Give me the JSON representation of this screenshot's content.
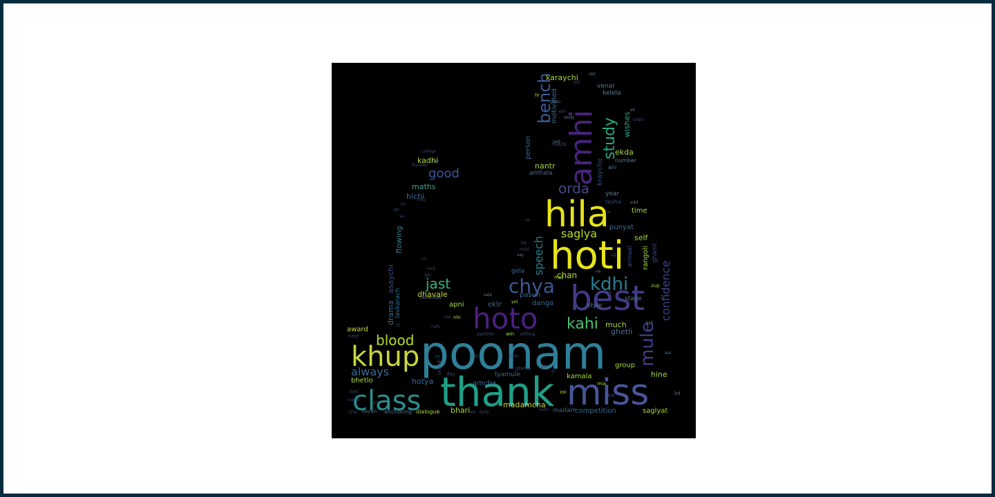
{
  "words": [
    {
      "text": "poonam",
      "color": "#2f7f98"
    },
    {
      "text": "thank",
      "color": "#1f9f88"
    },
    {
      "text": "miss",
      "color": "#46569a"
    },
    {
      "text": "class",
      "color": "#2a8e8d"
    },
    {
      "text": "khup",
      "color": "#c8d63c"
    },
    {
      "text": "hoti",
      "color": "#e7e419"
    },
    {
      "text": "hila",
      "color": "#e7e419"
    },
    {
      "text": "best",
      "color": "#413b86"
    },
    {
      "text": "hoto",
      "color": "#4b1f80"
    },
    {
      "text": "amhi",
      "color": "#47247b"
    },
    {
      "text": "chya",
      "color": "#3b5a96"
    },
    {
      "text": "kdhi",
      "color": "#2a7e91"
    },
    {
      "text": "kahi",
      "color": "#48c06f"
    },
    {
      "text": "mule",
      "color": "#413f86"
    },
    {
      "text": "blood",
      "color": "#b5dd2b"
    },
    {
      "text": "jast",
      "color": "#34b57a"
    },
    {
      "text": "good",
      "color": "#3a569a"
    },
    {
      "text": "bench",
      "color": "#3a5a9a"
    },
    {
      "text": "study",
      "color": "#27aa82"
    },
    {
      "text": "orda",
      "color": "#444885"
    },
    {
      "text": "saglya",
      "color": "#b4dd2b"
    },
    {
      "text": "speech",
      "color": "#2a7f8e"
    },
    {
      "text": "confidence",
      "color": "#3e4388"
    },
    {
      "text": "always",
      "color": "#3a6b94"
    },
    {
      "text": "chan",
      "color": "#b4dd2b"
    },
    {
      "text": "dhavale",
      "color": "#c8d63c"
    },
    {
      "text": "maths",
      "color": "#4d9f91"
    },
    {
      "text": "hichi",
      "color": "#3a6b94"
    },
    {
      "text": "kadhi",
      "color": "#a8d83c"
    },
    {
      "text": "nantr",
      "color": "#a8d83c"
    },
    {
      "text": "amhala",
      "color": "#4d6d8f"
    },
    {
      "text": "person",
      "color": "#3a6b94"
    },
    {
      "text": "wishes",
      "color": "#35a08a"
    },
    {
      "text": "ekda",
      "color": "#a8d83c"
    },
    {
      "text": "motivated",
      "color": "#3a6b94"
    },
    {
      "text": "karaychi",
      "color": "#a8d83c"
    },
    {
      "text": "venar",
      "color": "#5a7a93"
    },
    {
      "text": "kelela",
      "color": "#5a7a93"
    },
    {
      "text": "flowing",
      "color": "#2f8090"
    },
    {
      "text": "drama",
      "color": "#3a6b94"
    },
    {
      "text": "asaychi",
      "color": "#3d4a86"
    },
    {
      "text": "lavkarach",
      "color": "#2f7090"
    },
    {
      "text": "award",
      "color": "#c8d63c"
    },
    {
      "text": "next",
      "color": "#3a4a70"
    },
    {
      "text": "bhetlo",
      "color": "#a8d83c"
    },
    {
      "text": "hotya",
      "color": "#3a6b94"
    },
    {
      "text": "amcha",
      "color": "#3a6b94"
    },
    {
      "text": "tyamule",
      "color": "#3a6b94"
    },
    {
      "text": "kamala",
      "color": "#a8d83c"
    },
    {
      "text": "madamcha",
      "color": "#c8d63c"
    },
    {
      "text": "bhari",
      "color": "#a8d83c"
    },
    {
      "text": "madam",
      "color": "#3a6b94"
    },
    {
      "text": "competition",
      "color": "#3a6b94"
    },
    {
      "text": "saglyat",
      "color": "#a8d83c"
    },
    {
      "text": "hine",
      "color": "#a8d83c"
    },
    {
      "text": "group",
      "color": "#a8d83c"
    },
    {
      "text": "ghetli",
      "color": "#4d6d8f"
    },
    {
      "text": "much",
      "color": "#a8d83c"
    },
    {
      "text": "stage",
      "color": "#5a7a93"
    },
    {
      "text": "style",
      "color": "#5a7a93"
    },
    {
      "text": "apni",
      "color": "#a8d83c"
    },
    {
      "text": "ektr",
      "color": "#3a6b94"
    },
    {
      "text": "danga",
      "color": "#3a6b94"
    },
    {
      "text": "pasun",
      "color": "#3a6b94"
    },
    {
      "text": "gela",
      "color": "#3a6b94"
    },
    {
      "text": "punyat",
      "color": "#3a6b94"
    },
    {
      "text": "self",
      "color": "#a8d83c"
    },
    {
      "text": "time",
      "color": "#a8d83c"
    },
    {
      "text": "year",
      "color": "#5a7a93"
    },
    {
      "text": "rangoli",
      "color": "#a8d83c"
    },
    {
      "text": "annual",
      "color": "#3a4a80"
    },
    {
      "text": "anchoring",
      "color": "#5a7a93"
    },
    {
      "text": "dialogue",
      "color": "#a8d83c"
    },
    {
      "text": "kayan",
      "color": "#5a7a93"
    },
    {
      "text": "cha",
      "color": "#3a4a70"
    },
    {
      "text": "sir",
      "color": "#3a4a70"
    },
    {
      "text": "tula",
      "color": "#3a4a70"
    },
    {
      "text": "kraycho",
      "color": "#2f5080"
    },
    {
      "text": "ani",
      "color": "#5a7a93"
    },
    {
      "text": "number",
      "color": "#5a7a93"
    },
    {
      "text": "maza",
      "color": "#3a4a70"
    },
    {
      "text": "ghanit",
      "color": "#3a4a80"
    },
    {
      "text": "tevha",
      "color": "#3a4a80"
    },
    {
      "text": "win",
      "color": "#a8d83c"
    },
    {
      "text": "partner",
      "color": "#3a4a70"
    },
    {
      "text": "selling",
      "color": "#3a4a70"
    },
    {
      "text": "tr",
      "color": "#3a4a70"
    },
    {
      "text": "chi",
      "color": "#3a4a70"
    },
    {
      "text": "day",
      "color": "#3a4a70"
    },
    {
      "text": "ghetla",
      "color": "#3a4a70"
    },
    {
      "text": "kam",
      "color": "#3a4a70"
    },
    {
      "text": "zai",
      "color": "#a8d83c"
    },
    {
      "text": "mia",
      "color": "#a8d83c"
    },
    {
      "text": "nhi",
      "color": "#a8d83c"
    },
    {
      "text": "usa",
      "color": "#3a4a70"
    },
    {
      "text": "mst",
      "color": "#a8d83c"
    },
    {
      "text": "fod",
      "color": "#3a4a70"
    },
    {
      "text": "kd",
      "color": "#5a7a93"
    },
    {
      "text": "zup",
      "color": "#a8d83c"
    },
    {
      "text": "1st",
      "color": "#5a7a93"
    },
    {
      "text": "aur",
      "color": "#5a7a93"
    },
    {
      "text": "remember",
      "color": "#5a7a93"
    },
    {
      "text": "zale",
      "color": "#5a7a93"
    },
    {
      "text": "yet",
      "color": "#a8d83c"
    },
    {
      "text": "nick",
      "color": "#3a4a70"
    },
    {
      "text": "9th",
      "color": "#3a4a70"
    },
    {
      "text": "ch",
      "color": "#3a4a70"
    },
    {
      "text": "mod",
      "color": "#3a4a70"
    },
    {
      "text": "say",
      "color": "#5a7a93"
    },
    {
      "text": "pg",
      "color": "#3a4a70"
    },
    {
      "text": "nh",
      "color": "#3a4a70"
    },
    {
      "text": "ug",
      "color": "#3a4a70"
    },
    {
      "text": "ne",
      "color": "#5a7a93"
    },
    {
      "text": "jnu",
      "color": "#3a4a70"
    },
    {
      "text": "sth",
      "color": "#3a4a70"
    },
    {
      "text": "det",
      "color": "#5a7a93"
    },
    {
      "text": "ghau",
      "color": "#5a7a93"
    },
    {
      "text": "apn",
      "color": "#3a4a70"
    },
    {
      "text": "hi",
      "color": "#a8d83c"
    },
    {
      "text": "iast",
      "color": "#5a7a93"
    },
    {
      "text": "avaj",
      "color": "#5a7a93"
    },
    {
      "text": "sagla",
      "color": "#3a4a70"
    },
    {
      "text": "ek",
      "color": "#5a7a93"
    },
    {
      "text": "add",
      "color": "#5a7a93"
    },
    {
      "text": "ho",
      "color": "#3a4a70"
    },
    {
      "text": "lay",
      "color": "#5a7a93"
    },
    {
      "text": "founder",
      "color": "#3a4a70"
    },
    {
      "text": "college",
      "color": "#3a4a70"
    },
    {
      "text": "hou",
      "color": "#3a4a70"
    },
    {
      "text": "ka",
      "color": "#3a4a70"
    },
    {
      "text": "va",
      "color": "#3a4a70"
    },
    {
      "text": "gu",
      "color": "#3a4a70"
    },
    {
      "text": "tt",
      "color": "#3a4a70"
    },
    {
      "text": "bhandh",
      "color": "#3a4a70"
    },
    {
      "text": "nahi",
      "color": "#3a4a70"
    },
    {
      "text": "baki",
      "color": "#3a4a70"
    },
    {
      "text": "naher",
      "color": "#3a4a70"
    },
    {
      "text": "pl",
      "color": "#3a4a70"
    },
    {
      "text": "ath",
      "color": "#3a4a70"
    },
    {
      "text": "ulahi",
      "color": "#3a4a70"
    },
    {
      "text": "tfr",
      "color": "#3a4a70"
    }
  ]
}
